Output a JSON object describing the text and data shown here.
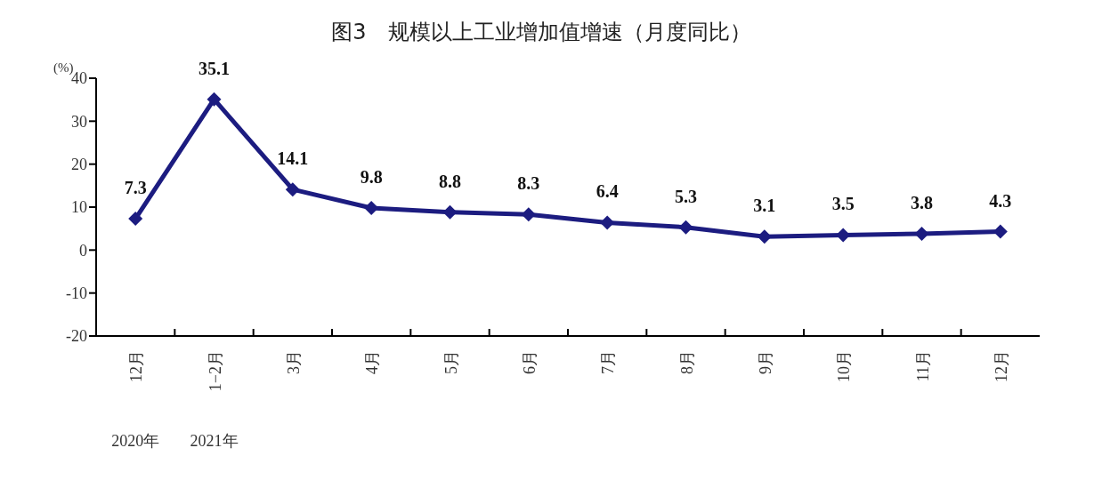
{
  "chart_data": {
    "type": "line",
    "title": "图3　规模以上工业增加值增速（月度同比）",
    "ylabel": "(%)",
    "categories": [
      "12月",
      "1−2月",
      "3月",
      "4月",
      "5月",
      "6月",
      "7月",
      "8月",
      "9月",
      "10月",
      "11月",
      "12月"
    ],
    "series": [
      {
        "color": "#1c1c80",
        "values": [
          7.3,
          35.1,
          14.1,
          9.8,
          8.8,
          8.3,
          6.4,
          5.3,
          3.1,
          3.5,
          3.8,
          4.3
        ]
      }
    ],
    "ylim": [
      -20,
      40
    ],
    "yticks": [
      -20,
      -10,
      0,
      10,
      20,
      30,
      40
    ],
    "grid": false,
    "legend": false,
    "marker": "diamond",
    "line_style": "solid",
    "data_labels": true,
    "annotations": [
      "2020年",
      "2021年"
    ]
  }
}
